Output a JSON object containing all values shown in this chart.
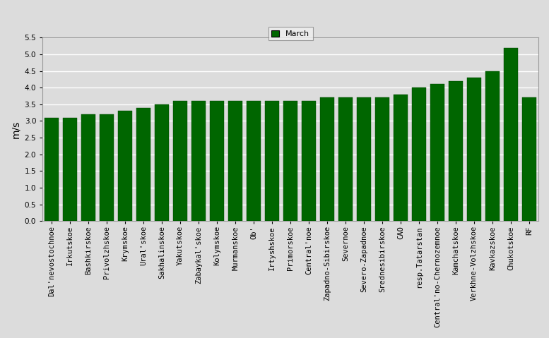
{
  "categories": [
    "Dal'nevostochnoe",
    "Irkutskoe",
    "Bashkirskoe",
    "Privolzhskoe",
    "Krymskoe",
    "Ural'skoe",
    "Sakhalinskoe",
    "Yakutskoe",
    "Zabaykal'skoe",
    "Kolymskoe",
    "Murmanskoe",
    "Ob'",
    "Irtyshskoe",
    "Primorskoe",
    "Central'noe",
    "Zapadno-Sibirskoe",
    "Severnoe",
    "Severo-Zapadnoe",
    "Srednesibirskoe",
    "CAO",
    "resp.Tatarstan",
    "Central'no-Chernozemnoe",
    "Kamchatskoe",
    "Verkhne-Volzhskoe",
    "Kavkazskoe",
    "Chukotskoe",
    "RF"
  ],
  "values": [
    3.1,
    3.1,
    3.2,
    3.2,
    3.3,
    3.4,
    3.5,
    3.6,
    3.6,
    3.6,
    3.6,
    3.6,
    3.6,
    3.6,
    3.6,
    3.7,
    3.7,
    3.7,
    3.7,
    3.8,
    4.0,
    4.1,
    4.2,
    4.3,
    4.5,
    5.2,
    3.7
  ],
  "bar_color": "#006600",
  "bar_edgecolor": "#004400",
  "ylabel": "m/s",
  "ylim": [
    0,
    5.5
  ],
  "yticks": [
    0,
    0.5,
    1.0,
    1.5,
    2.0,
    2.5,
    3.0,
    3.5,
    4.0,
    4.5,
    5.0,
    5.5
  ],
  "legend_label": "March",
  "legend_color": "#006600",
  "background_color": "#dcdcdc",
  "plot_bg_color": "#dcdcdc",
  "grid_color": "#ffffff",
  "tick_fontsize": 7.5,
  "ylabel_fontsize": 10,
  "bar_width": 0.75
}
